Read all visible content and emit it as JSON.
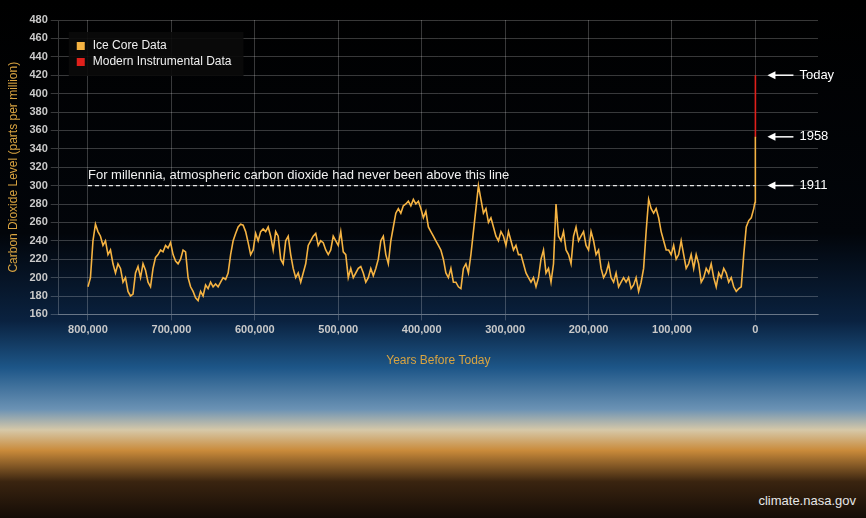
{
  "chart_data": {
    "type": "line",
    "xlabel": "Years Before Today",
    "ylabel": "Carbon Dioxide Level (parts per million)",
    "xlim": [
      835000,
      -75000
    ],
    "xticks": [
      {
        "value": 800000,
        "label": "800,000"
      },
      {
        "value": 700000,
        "label": "700,000"
      },
      {
        "value": 600000,
        "label": "600,000"
      },
      {
        "value": 500000,
        "label": "500,000"
      },
      {
        "value": 400000,
        "label": "400,000"
      },
      {
        "value": 300000,
        "label": "300,000"
      },
      {
        "value": 200000,
        "label": "200,000"
      },
      {
        "value": 100000,
        "label": "100,000"
      },
      0
    ],
    "ylim": [
      160,
      480
    ],
    "yticks": [
      160,
      180,
      200,
      220,
      240,
      260,
      280,
      300,
      320,
      340,
      360,
      380,
      400,
      420,
      440,
      460,
      480
    ],
    "grid": true,
    "legend": "upper left",
    "series": [
      {
        "name": "Ice Core Data",
        "color": "#f5b342",
        "x": [
          800000,
          797000,
          794000,
          791000,
          788000,
          785000,
          782000,
          779000,
          776000,
          773000,
          770000,
          767000,
          764000,
          761000,
          758000,
          755000,
          752000,
          749000,
          746000,
          743000,
          740000,
          737000,
          734000,
          731000,
          728000,
          725000,
          722000,
          719000,
          716000,
          713000,
          710000,
          707000,
          704000,
          701000,
          698000,
          695000,
          692000,
          689000,
          686000,
          683000,
          680000,
          677000,
          674000,
          671000,
          668000,
          665000,
          662000,
          659000,
          656000,
          653000,
          650000,
          647000,
          644000,
          641000,
          638000,
          635000,
          632000,
          629000,
          626000,
          623000,
          620000,
          617000,
          614000,
          611000,
          608000,
          605000,
          602000,
          599000,
          596000,
          593000,
          590000,
          587000,
          584000,
          581000,
          578000,
          575000,
          572000,
          569000,
          566000,
          563000,
          560000,
          557000,
          554000,
          551000,
          548000,
          545000,
          542000,
          539000,
          536000,
          533000,
          530000,
          527000,
          524000,
          521000,
          518000,
          515000,
          512000,
          509000,
          506000,
          503000,
          500000,
          497000,
          494000,
          491000,
          488000,
          485000,
          482000,
          479000,
          476000,
          473000,
          470000,
          467000,
          464000,
          461000,
          458000,
          455000,
          452000,
          449000,
          446000,
          443000,
          440000,
          437000,
          434000,
          431000,
          428000,
          425000,
          422000,
          419000,
          416000,
          413000,
          410000,
          407000,
          404000,
          401000,
          398000,
          395000,
          392000,
          389000,
          386000,
          383000,
          380000,
          377000,
          374000,
          371000,
          368000,
          365000,
          362000,
          359000,
          356000,
          353000,
          350000,
          347000,
          344000,
          341000,
          338000,
          335000,
          332000,
          329000,
          326000,
          323000,
          320000,
          317000,
          314000,
          311000,
          308000,
          305000,
          302000,
          299000,
          296000,
          293000,
          290000,
          287000,
          284000,
          281000,
          278000,
          275000,
          272000,
          269000,
          266000,
          263000,
          260000,
          257000,
          254000,
          251000,
          248000,
          245000,
          242000,
          239000,
          236000,
          233000,
          230000,
          227000,
          224000,
          221000,
          218000,
          215000,
          212000,
          209000,
          206000,
          203000,
          200000,
          197000,
          194000,
          191000,
          188000,
          185000,
          182000,
          179000,
          176000,
          173000,
          170000,
          167000,
          164000,
          161000,
          158000,
          155000,
          152000,
          149000,
          146000,
          143000,
          140000,
          137000,
          134000,
          131000,
          128000,
          125000,
          122000,
          119000,
          116000,
          113000,
          110000,
          107000,
          104000,
          101000,
          98000,
          95000,
          92000,
          89000,
          86000,
          83000,
          80000,
          77000,
          74000,
          71000,
          68000,
          65000,
          62000,
          59000,
          56000,
          53000,
          50000,
          47000,
          44000,
          41000,
          38000,
          35000,
          32000,
          29000,
          26000,
          23000,
          20000,
          17000,
          14000,
          11000,
          8000,
          5000,
          2000,
          1000,
          300,
          114,
          67
        ],
        "values": [
          190,
          200,
          240,
          258,
          250,
          245,
          235,
          240,
          225,
          230,
          215,
          205,
          215,
          210,
          195,
          200,
          185,
          180,
          182,
          205,
          212,
          200,
          215,
          208,
          195,
          190,
          210,
          222,
          225,
          230,
          228,
          235,
          232,
          238,
          225,
          218,
          215,
          220,
          230,
          228,
          200,
          190,
          185,
          178,
          175,
          185,
          180,
          192,
          188,
          195,
          190,
          193,
          190,
          195,
          200,
          198,
          205,
          225,
          240,
          248,
          255,
          258,
          257,
          250,
          238,
          225,
          230,
          248,
          240,
          250,
          253,
          250,
          255,
          245,
          230,
          250,
          245,
          220,
          215,
          240,
          245,
          225,
          210,
          200,
          205,
          195,
          205,
          215,
          235,
          240,
          245,
          248,
          235,
          240,
          238,
          230,
          225,
          230,
          245,
          240,
          235,
          250,
          228,
          225,
          200,
          210,
          200,
          205,
          210,
          212,
          205,
          195,
          200,
          210,
          202,
          210,
          220,
          240,
          245,
          225,
          215,
          240,
          255,
          270,
          275,
          270,
          278,
          280,
          283,
          278,
          285,
          280,
          283,
          275,
          265,
          272,
          255,
          250,
          245,
          240,
          235,
          230,
          220,
          205,
          200,
          210,
          195,
          195,
          190,
          188,
          210,
          215,
          205,
          225,
          250,
          275,
          300,
          285,
          270,
          275,
          260,
          265,
          255,
          245,
          240,
          250,
          245,
          235,
          250,
          240,
          230,
          235,
          225,
          225,
          215,
          205,
          200,
          195,
          200,
          190,
          200,
          220,
          230,
          205,
          210,
          195,
          215,
          280,
          245,
          240,
          250,
          230,
          225,
          215,
          245,
          255,
          240,
          245,
          250,
          235,
          230,
          250,
          240,
          225,
          230,
          210,
          200,
          205,
          215,
          200,
          195,
          205,
          190,
          195,
          200,
          195,
          200,
          188,
          192,
          200,
          185,
          195,
          210,
          250,
          285,
          275,
          270,
          275,
          265,
          250,
          240,
          230,
          230,
          225,
          235,
          220,
          225,
          240,
          225,
          210,
          215,
          225,
          210,
          225,
          215,
          195,
          200,
          210,
          205,
          215,
          200,
          190,
          205,
          200,
          210,
          205,
          195,
          200,
          190,
          185,
          188,
          190,
          225,
          255,
          262,
          265,
          275,
          280,
          282,
          300,
          353
        ]
      },
      {
        "name": "Modern Instrumental Data",
        "color": "#e0201b",
        "x": [
          67,
          40,
          20,
          0
        ],
        "values": [
          353,
          370,
          388,
          420
        ]
      }
    ],
    "reference_line": {
      "y": 300,
      "label": "For millennia, atmospheric carbon dioxide had never been above this line"
    },
    "annotations": [
      {
        "label": "Today",
        "y": 420
      },
      {
        "label": "1958",
        "y": 353
      },
      {
        "label": "1911",
        "y": 300
      }
    ],
    "source": "climate.nasa.gov"
  }
}
